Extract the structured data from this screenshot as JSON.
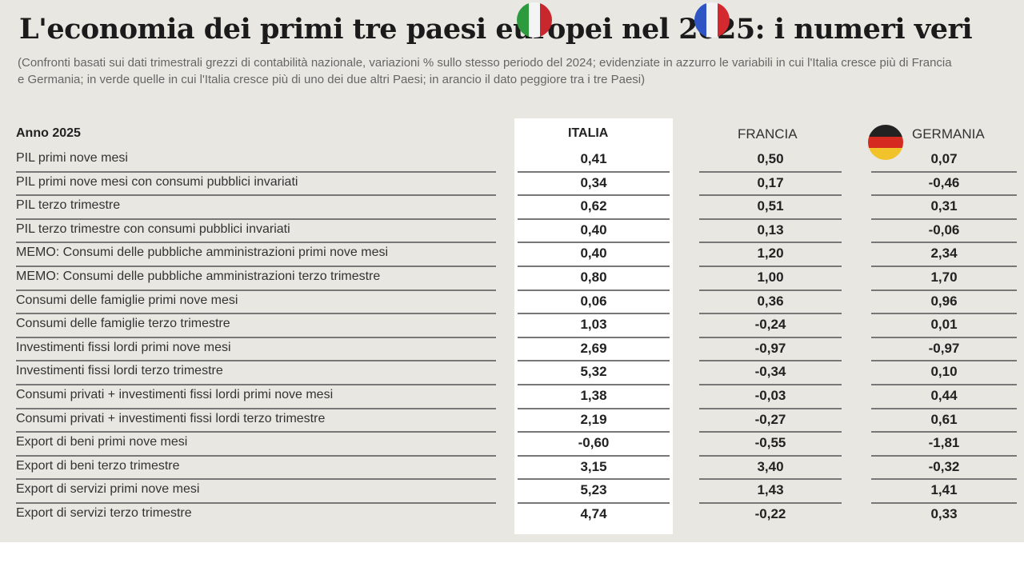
{
  "title": "L'economia dei primi tre paesi europei nel 2025: i numeri veri",
  "subtitle": "(Confronti basati sui dati trimestrali grezzi di contabilità nazionale, variazioni % sullo stesso periodo del 2024; evidenziate in azzurro le variabili in cui l'Italia cresce più di Francia e Germania; in verde quelle in cui l'Italia cresce più di uno dei due altri Paesi; in arancio il dato peggiore tra i tre Paesi)",
  "table": {
    "header": "Anno 2025",
    "columns": [
      "ITALIA",
      "FRANCIA",
      "GERMANIA"
    ],
    "rows": [
      {
        "label": "PIL primi nove mesi",
        "values": [
          "0,41",
          "0,50",
          "0,07"
        ]
      },
      {
        "label": "PIL primi nove mesi con consumi pubblici invariati",
        "values": [
          "0,34",
          "0,17",
          "-0,46"
        ]
      },
      {
        "label": "PIL terzo trimestre",
        "values": [
          "0,62",
          "0,51",
          "0,31"
        ]
      },
      {
        "label": "PIL terzo trimestre con consumi pubblici invariati",
        "values": [
          "0,40",
          "0,13",
          "-0,06"
        ]
      },
      {
        "label": "MEMO: Consumi delle pubbliche amministrazioni primi nove mesi",
        "values": [
          "0,40",
          "1,20",
          "2,34"
        ]
      },
      {
        "label": "MEMO: Consumi delle pubbliche amministrazioni terzo trimestre",
        "values": [
          "0,80",
          "1,00",
          "1,70"
        ]
      },
      {
        "label": "Consumi delle famiglie primi nove mesi",
        "values": [
          "0,06",
          "0,36",
          "0,96"
        ]
      },
      {
        "label": "Consumi delle famiglie terzo trimestre",
        "values": [
          "1,03",
          "-0,24",
          "0,01"
        ]
      },
      {
        "label": "Investimenti fissi lordi primi nove mesi",
        "values": [
          "2,69",
          "-0,97",
          "-0,97"
        ]
      },
      {
        "label": "Investimenti fissi lordi terzo trimestre",
        "values": [
          "5,32",
          "-0,34",
          "0,10"
        ]
      },
      {
        "label": "Consumi privati + investimenti fissi lordi primi nove mesi",
        "values": [
          "1,38",
          "-0,03",
          "0,44"
        ]
      },
      {
        "label": "Consumi privati + investimenti fissi lordi terzo trimestre",
        "values": [
          "2,19",
          "-0,27",
          "0,61"
        ]
      },
      {
        "label": "Export di beni primi nove mesi",
        "values": [
          "-0,60",
          "-0,55",
          "-1,81"
        ]
      },
      {
        "label": "Export di beni terzo trimestre",
        "values": [
          "3,15",
          "3,40",
          "-0,32"
        ]
      },
      {
        "label": "Export di servizi primi nove mesi",
        "values": [
          "5,23",
          "1,43",
          "1,41"
        ]
      },
      {
        "label": "Export di servizi terzo trimestre",
        "values": [
          "4,74",
          "-0,22",
          "0,33"
        ]
      }
    ]
  },
  "colors": {
    "background": "#e8e7e1",
    "italia_column": "#ffffff",
    "text": "#222222"
  }
}
